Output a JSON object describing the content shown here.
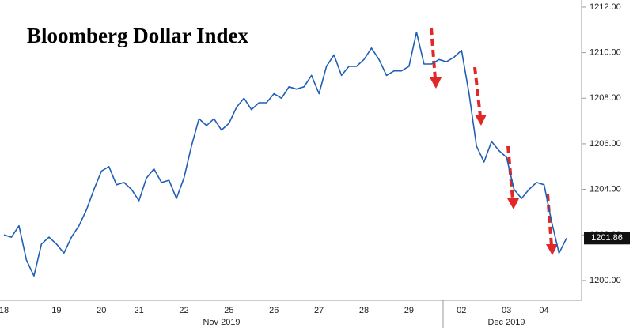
{
  "chart_data": {
    "type": "line",
    "title": "Bloomberg Dollar Index",
    "categories": [
      "18",
      null,
      null,
      null,
      null,
      null,
      null,
      "19",
      null,
      null,
      null,
      null,
      null,
      "20",
      null,
      null,
      null,
      null,
      "21",
      null,
      null,
      null,
      null,
      null,
      "22",
      null,
      null,
      null,
      null,
      null,
      "25",
      null,
      null,
      null,
      null,
      null,
      "26",
      null,
      null,
      null,
      null,
      null,
      "27",
      null,
      null,
      null,
      null,
      null,
      "28",
      null,
      null,
      null,
      null,
      null,
      "29",
      null,
      null,
      null,
      null,
      null,
      null,
      "02",
      null,
      null,
      null,
      null,
      null,
      "03",
      null,
      null,
      null,
      null,
      "04",
      null,
      null,
      null
    ],
    "month_labels": [
      "Nov 2019",
      "Dec 2019"
    ],
    "series": [
      {
        "name": "Bloomberg Dollar Index",
        "color": "#1f5fb4",
        "values": [
          1202.0,
          1201.9,
          1202.4,
          1200.9,
          1200.2,
          1201.6,
          1201.9,
          1201.6,
          1201.2,
          1201.9,
          1202.4,
          1203.1,
          1204.0,
          1204.8,
          1205.0,
          1204.2,
          1204.3,
          1204.0,
          1203.5,
          1204.5,
          1204.9,
          1204.3,
          1204.4,
          1203.6,
          1204.5,
          1205.9,
          1207.1,
          1206.8,
          1207.1,
          1206.6,
          1206.9,
          1207.6,
          1208.0,
          1207.5,
          1207.8,
          1207.8,
          1208.2,
          1208.0,
          1208.5,
          1208.4,
          1208.5,
          1209.0,
          1208.2,
          1209.4,
          1209.9,
          1209.0,
          1209.4,
          1209.4,
          1209.7,
          1210.2,
          1209.7,
          1209.0,
          1209.2,
          1209.2,
          1209.4,
          1210.9,
          1209.5,
          1209.5,
          1209.7,
          1209.6,
          1209.8,
          1210.1,
          1208.2,
          1205.9,
          1205.2,
          1206.1,
          1205.7,
          1205.4,
          1204.0,
          1203.6,
          1204.0,
          1204.3,
          1204.2,
          1202.6,
          1201.2,
          1201.86
        ]
      }
    ],
    "ylim": [
      1199.13,
      1212.31
    ],
    "yticks": [
      {
        "value": 1200,
        "label": "1200.00"
      },
      {
        "value": 1202,
        "label": "1202.00"
      },
      {
        "value": 1204,
        "label": "1204.00"
      },
      {
        "value": 1206,
        "label": "1206.00"
      },
      {
        "value": 1208,
        "label": "1208.00"
      },
      {
        "value": 1210,
        "label": "1210.00"
      },
      {
        "value": 1212,
        "label": "1212.00"
      }
    ],
    "grid": false
  }
}
